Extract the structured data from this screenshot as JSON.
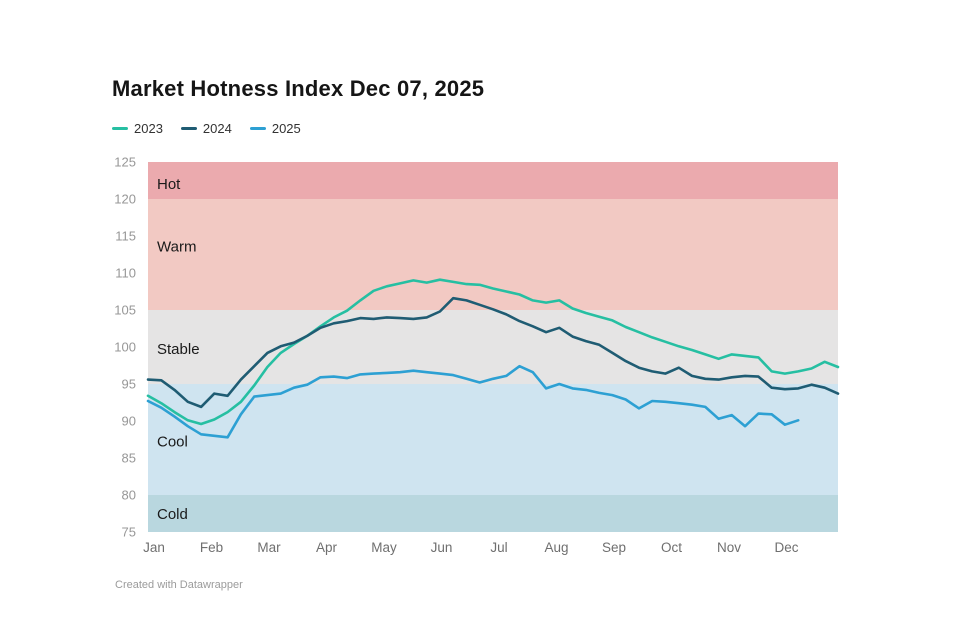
{
  "page": {
    "title": "Market Hotness Index Dec 07, 2025",
    "footer": "Created with Datawrapper"
  },
  "chart_data": {
    "type": "line",
    "title": "Market Hotness Index Dec 07, 2025",
    "xlabel": "",
    "ylabel": "",
    "ylim": [
      75,
      125
    ],
    "grid": false,
    "legend_position": "top-left",
    "x_axis": {
      "labels": [
        "Jan",
        "Feb",
        "Mar",
        "Apr",
        "May",
        "Jun",
        "Jul",
        "Aug",
        "Sep",
        "Oct",
        "Nov",
        "Dec"
      ],
      "points_per_year": 52
    },
    "y_axis": {
      "min": 75,
      "max": 125,
      "tick_step": 5,
      "ticks": [
        125,
        120,
        115,
        110,
        105,
        100,
        95,
        90,
        85,
        80,
        75
      ]
    },
    "bands": [
      {
        "label": "Hot",
        "from": 120,
        "to": 125,
        "color": "#ebaaae",
        "label_at": 122.0
      },
      {
        "label": "Warm",
        "from": 105,
        "to": 120,
        "color": "#f2c9c3",
        "label_at": 113.6
      },
      {
        "label": "Stable",
        "from": 95,
        "to": 105,
        "color": "#e5e4e4",
        "label_at": 99.7
      },
      {
        "label": "Cool",
        "from": 80,
        "to": 95,
        "color": "#cfe4f0",
        "label_at": 87.2
      },
      {
        "label": "Cold",
        "from": 75,
        "to": 80,
        "color": "#b9d7df",
        "label_at": 77.4
      }
    ],
    "series": [
      {
        "name": "2023",
        "color": "#26bfa2",
        "values": [
          93.4,
          92.4,
          91.2,
          90.1,
          89.6,
          90.2,
          91.2,
          92.6,
          94.8,
          97.3,
          99.2,
          100.4,
          101.5,
          102.8,
          104.0,
          104.9,
          106.3,
          107.6,
          108.2,
          108.6,
          109.0,
          108.7,
          109.1,
          108.8,
          108.5,
          108.4,
          107.9,
          107.5,
          107.1,
          106.3,
          106.0,
          106.3,
          105.2,
          104.6,
          104.1,
          103.6,
          102.7,
          102.0,
          101.3,
          100.7,
          100.1,
          99.6,
          99.0,
          98.4,
          99.0,
          98.8,
          98.6,
          96.7,
          96.4,
          96.7,
          97.1,
          98.0,
          97.3
        ]
      },
      {
        "name": "2024",
        "color": "#1f5c73",
        "values": [
          95.6,
          95.5,
          94.2,
          92.6,
          91.9,
          93.7,
          93.4,
          95.6,
          97.4,
          99.2,
          100.1,
          100.6,
          101.5,
          102.6,
          103.2,
          103.5,
          103.9,
          103.8,
          104.0,
          103.9,
          103.8,
          104.0,
          104.8,
          106.6,
          106.3,
          105.7,
          105.1,
          104.4,
          103.5,
          102.8,
          102.0,
          102.6,
          101.4,
          100.8,
          100.3,
          99.2,
          98.1,
          97.2,
          96.7,
          96.4,
          97.2,
          96.1,
          95.7,
          95.6,
          95.9,
          96.1,
          96.0,
          94.5,
          94.3,
          94.4,
          94.9,
          94.5,
          93.7
        ]
      },
      {
        "name": "2025",
        "color": "#2da0d3",
        "values": [
          92.7,
          91.8,
          90.6,
          89.3,
          88.2,
          88.0,
          87.8,
          90.9,
          93.3,
          93.5,
          93.7,
          94.5,
          94.9,
          95.9,
          96.0,
          95.8,
          96.3,
          96.4,
          96.5,
          96.6,
          96.8,
          96.6,
          96.4,
          96.2,
          95.7,
          95.2,
          95.7,
          96.1,
          97.4,
          96.6,
          94.4,
          95.0,
          94.4,
          94.2,
          93.8,
          93.5,
          92.9,
          91.7,
          92.7,
          92.6,
          92.4,
          92.2,
          91.9,
          90.3,
          90.8,
          89.3,
          91.0,
          90.9,
          89.5,
          90.1
        ]
      }
    ]
  }
}
